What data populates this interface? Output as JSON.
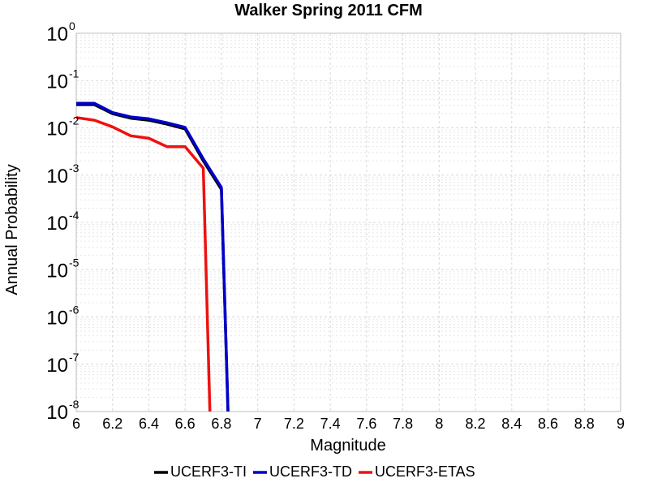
{
  "chart_data": {
    "type": "line",
    "title": "Walker Spring 2011 CFM",
    "xlabel": "Magnitude",
    "ylabel": "Annual Probability",
    "xlim": [
      6,
      9
    ],
    "ylim": [
      1e-08,
      1
    ],
    "yscale": "log",
    "grid": true,
    "legend_position": "bottom",
    "x_ticks": [
      "6",
      "6.2",
      "6.4",
      "6.6",
      "6.8",
      "7",
      "7.2",
      "7.4",
      "7.6",
      "7.8",
      "8",
      "8.2",
      "8.4",
      "8.6",
      "8.8",
      "9"
    ],
    "y_ticks": [
      {
        "base": "10",
        "exp": "0"
      },
      {
        "base": "10",
        "exp": "-1"
      },
      {
        "base": "10",
        "exp": "-2"
      },
      {
        "base": "10",
        "exp": "-3"
      },
      {
        "base": "10",
        "exp": "-4"
      },
      {
        "base": "10",
        "exp": "-5"
      },
      {
        "base": "10",
        "exp": "-6"
      },
      {
        "base": "10",
        "exp": "-7"
      },
      {
        "base": "10",
        "exp": "-8"
      }
    ],
    "series": [
      {
        "name": "UCERF3-TI",
        "color": "#000000",
        "x": [
          6.0,
          6.1,
          6.2,
          6.3,
          6.4,
          6.5,
          6.6,
          6.7,
          6.8,
          6.84
        ],
        "y": [
          0.031,
          0.031,
          0.02,
          0.016,
          0.0145,
          0.012,
          0.0095,
          0.002,
          0.0005,
          1e-09
        ]
      },
      {
        "name": "UCERF3-TD",
        "color": "#0000cc",
        "x": [
          6.0,
          6.1,
          6.2,
          6.3,
          6.4,
          6.5,
          6.6,
          6.7,
          6.8,
          6.84
        ],
        "y": [
          0.033,
          0.033,
          0.021,
          0.017,
          0.0155,
          0.0128,
          0.0102,
          0.0022,
          0.00055,
          1e-09
        ]
      },
      {
        "name": "UCERF3-ETAS",
        "color": "#ee1111",
        "x": [
          6.0,
          6.1,
          6.2,
          6.3,
          6.4,
          6.5,
          6.6,
          6.7,
          6.74
        ],
        "y": [
          0.0165,
          0.0145,
          0.0105,
          0.0068,
          0.006,
          0.004,
          0.004,
          0.0014,
          1e-09
        ]
      }
    ]
  }
}
